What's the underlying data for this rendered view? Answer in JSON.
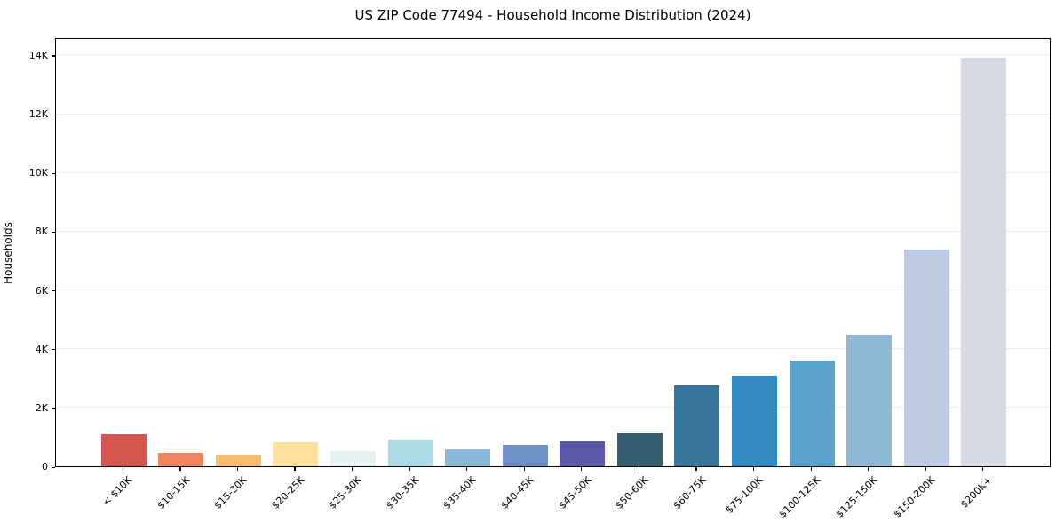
{
  "title": "US ZIP Code 77494 - Household Income Distribution (2024)",
  "chart_data": {
    "type": "bar",
    "title": "US ZIP Code 77494 - Household Income Distribution (2024)",
    "xlabel": "",
    "ylabel": "Households",
    "categories": [
      "< $10K",
      "$10-15K",
      "$15-20K",
      "$20-25K",
      "$25-30K",
      "$30-35K",
      "$35-40K",
      "$40-45K",
      "$45-50K",
      "$50-60K",
      "$60-75K",
      "$75-100K",
      "$100-125K",
      "$125-150K",
      "$150-200K",
      "$200K+"
    ],
    "values": [
      1100,
      450,
      400,
      820,
      520,
      900,
      580,
      730,
      860,
      1160,
      2750,
      3070,
      3590,
      4460,
      7390,
      13900
    ],
    "bar_colors": [
      "#d5564f",
      "#f0845c",
      "#f8bb71",
      "#fce09c",
      "#e5f1f3",
      "#abd9e6",
      "#8cb8d8",
      "#6b91c5",
      "#5958a8",
      "#375d70",
      "#36759c",
      "#338ac0",
      "#5ca3cc",
      "#90b9d7",
      "#bccbe1",
      "#d8dae6"
    ],
    "y_ticks": {
      "labels": [
        "0",
        "2K",
        "4K",
        "6K",
        "8K",
        "10K",
        "12K",
        "14K"
      ],
      "values": [
        0,
        2000,
        4000,
        6000,
        8000,
        10000,
        12000,
        14000
      ]
    },
    "ylim": [
      0,
      14600
    ],
    "grid": "horizontal",
    "legend": "none",
    "background_color": "#ffffff",
    "grid_color": "#ececec",
    "spine_color": "#000000"
  }
}
